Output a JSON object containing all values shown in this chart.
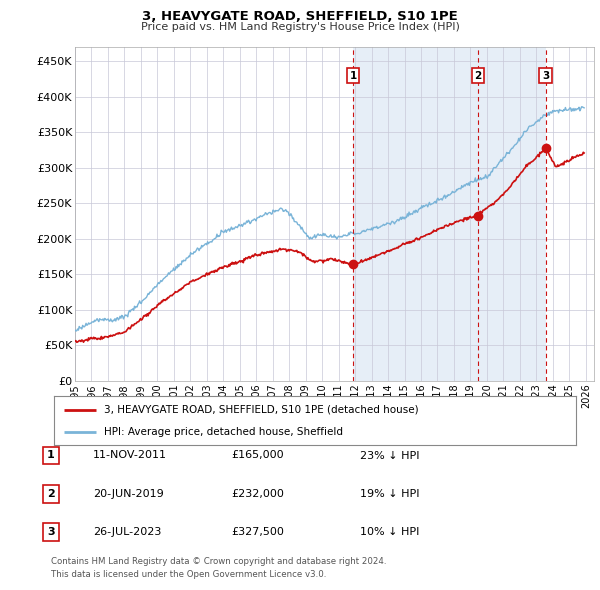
{
  "title": "3, HEAVYGATE ROAD, SHEFFIELD, S10 1PE",
  "subtitle": "Price paid vs. HM Land Registry's House Price Index (HPI)",
  "ylabel_ticks": [
    "£0",
    "£50K",
    "£100K",
    "£150K",
    "£200K",
    "£250K",
    "£300K",
    "£350K",
    "£400K",
    "£450K"
  ],
  "ytick_values": [
    0,
    50000,
    100000,
    150000,
    200000,
    250000,
    300000,
    350000,
    400000,
    450000
  ],
  "ylim": [
    0,
    470000
  ],
  "xlim_start": 1995.0,
  "xlim_end": 2026.5,
  "transactions": [
    {
      "label": "1",
      "date_dec": 2011.87,
      "price": 165000,
      "pct": "23%",
      "date_str": "11-NOV-2011",
      "price_str": "£165,000"
    },
    {
      "label": "2",
      "date_dec": 2019.47,
      "price": 232000,
      "pct": "19%",
      "date_str": "20-JUN-2019",
      "price_str": "£232,000"
    },
    {
      "label": "3",
      "date_dec": 2023.57,
      "price": 327500,
      "pct": "10%",
      "date_str": "26-JUL-2023",
      "price_str": "£327,500"
    }
  ],
  "legend_line1": "3, HEAVYGATE ROAD, SHEFFIELD, S10 1PE (detached house)",
  "legend_line2": "HPI: Average price, detached house, Sheffield",
  "footnote1": "Contains HM Land Registry data © Crown copyright and database right 2024.",
  "footnote2": "This data is licensed under the Open Government Licence v3.0.",
  "hpi_color": "#7ab4d8",
  "price_color": "#cc1111",
  "vline_color": "#cc1111",
  "shade_color": "#dce8f5",
  "plot_bg_color": "#ffffff",
  "grid_color": "#c8c8d8"
}
